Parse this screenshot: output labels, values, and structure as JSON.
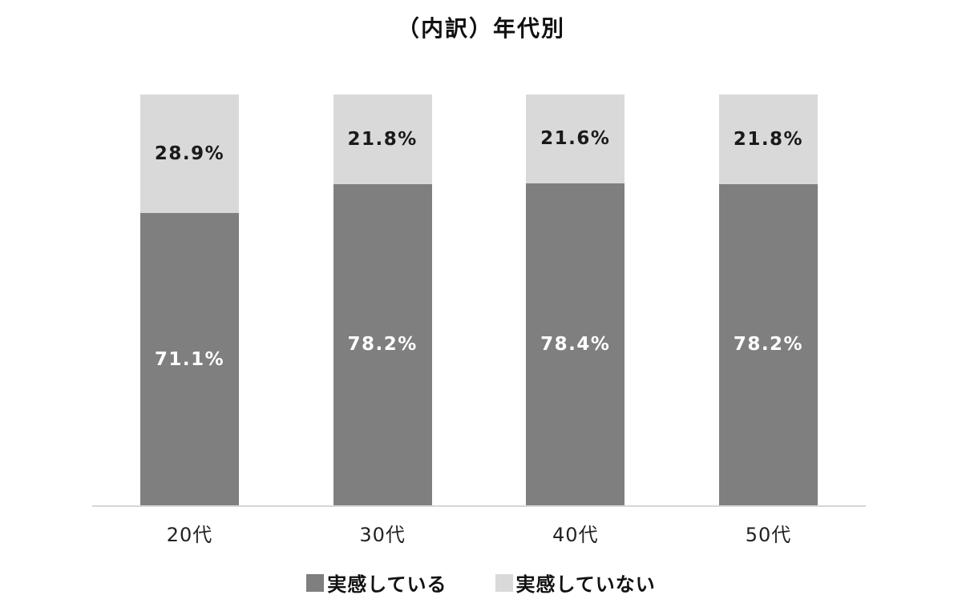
{
  "chart_data": {
    "type": "bar",
    "stacked": true,
    "orientation": "vertical",
    "title": "（内訳）年代別",
    "categories": [
      "20代",
      "30代",
      "40代",
      "50代"
    ],
    "series": [
      {
        "name": "実感している",
        "color": "#7f7f7f",
        "label_color": "#ffffff",
        "values": [
          71.1,
          78.2,
          78.4,
          78.2
        ]
      },
      {
        "name": "実感していない",
        "color": "#d9d9d9",
        "label_color": "#1a1a1a",
        "values": [
          28.9,
          21.8,
          21.6,
          21.8
        ]
      }
    ],
    "value_suffix": "%",
    "ylim": [
      0,
      100
    ],
    "legend_position": "bottom",
    "grid": false,
    "background": "#ffffff"
  }
}
